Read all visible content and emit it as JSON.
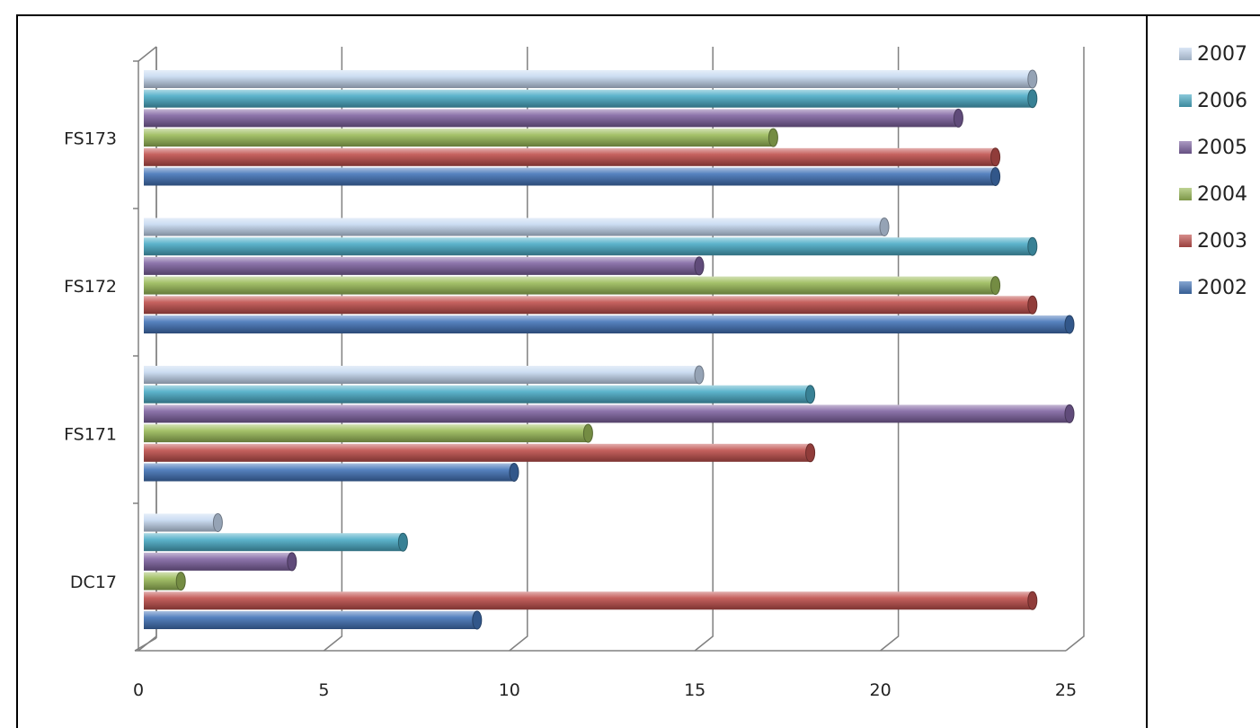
{
  "chart_data": {
    "type": "bar",
    "orientation": "horizontal",
    "categories": [
      "DC17",
      "FS171",
      "FS172",
      "FS173"
    ],
    "series": [
      {
        "name": "2002",
        "color": "#4374b8",
        "values": [
          9,
          10,
          25,
          23
        ]
      },
      {
        "name": "2003",
        "color": "#c0504d",
        "values": [
          24,
          18,
          24,
          23
        ]
      },
      {
        "name": "2004",
        "color": "#9bbb59",
        "values": [
          1,
          12,
          23,
          17
        ]
      },
      {
        "name": "2005",
        "color": "#8064a2",
        "values": [
          4,
          25,
          15,
          22
        ]
      },
      {
        "name": "2006",
        "color": "#4bacc6",
        "values": [
          7,
          18,
          24,
          24
        ]
      },
      {
        "name": "2007",
        "color": "#c6d9f1",
        "values": [
          2,
          15,
          20,
          24
        ]
      }
    ],
    "xlim": [
      0,
      25
    ],
    "x_ticks": [
      "0",
      "5",
      "10",
      "15",
      "20",
      "25"
    ],
    "grid": true,
    "legend_position": "right",
    "style": "3d-cylinder"
  }
}
